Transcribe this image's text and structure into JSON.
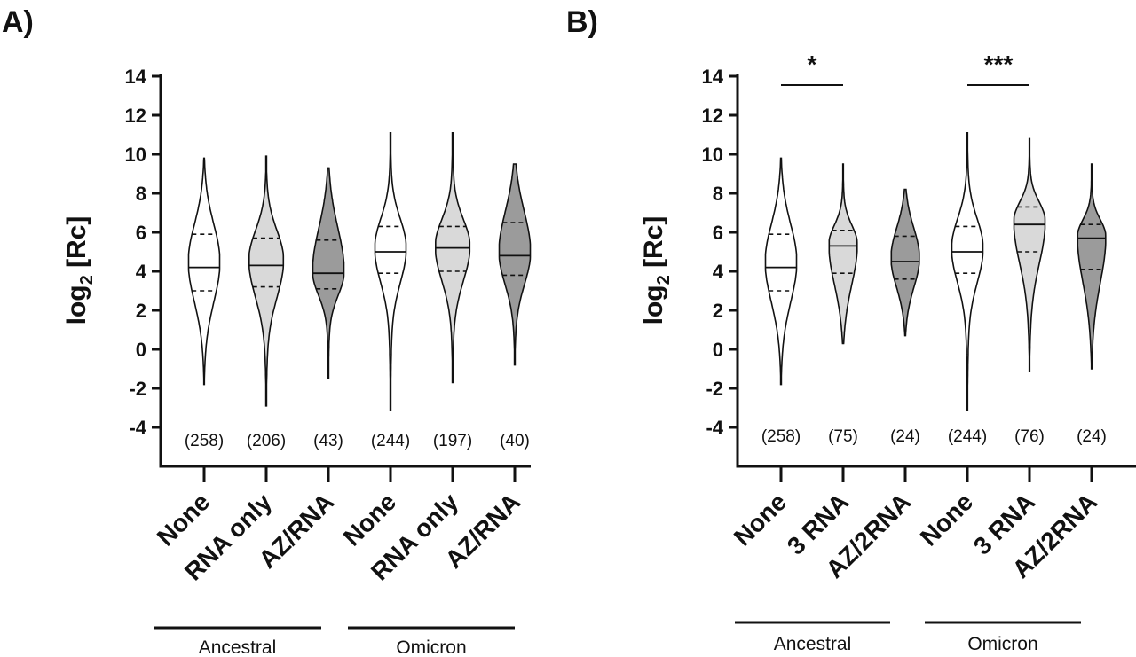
{
  "chart_data": [
    {
      "panel_label": "A)",
      "type": "violin",
      "ylabel_main": "log",
      "ylabel_sub": "2",
      "ylabel_rest": " [Rc]",
      "ylim": [
        -5,
        14
      ],
      "yticks": [
        14,
        12,
        10,
        8,
        6,
        4,
        2,
        0,
        -2,
        -4
      ],
      "ytick_labels": [
        "14",
        "12",
        "10",
        "8",
        "6",
        "4",
        "2",
        "0",
        "-2",
        "-4"
      ],
      "categories": [
        "None",
        "RNA only",
        "AZ/RNA",
        "None",
        "RNA only",
        "AZ/RNA"
      ],
      "counts": [
        "(258)",
        "(206)",
        "(43)",
        "(244)",
        "(197)",
        "(40)"
      ],
      "groups": [
        {
          "label": "Ancestral",
          "span": [
            0,
            2
          ]
        },
        {
          "label": "Omicron",
          "span": [
            3,
            5
          ]
        }
      ],
      "significance": [],
      "violins": [
        {
          "fill": "#ffffff",
          "min": -1.8,
          "max": 9.8,
          "q1": 3.0,
          "median": 4.2,
          "q3": 5.9,
          "mode": 4.5,
          "maxWidth": 0.5
        },
        {
          "fill": "#d9d9d9",
          "min": -2.9,
          "max": 9.9,
          "q1": 3.2,
          "median": 4.3,
          "q3": 5.7,
          "mode": 4.6,
          "maxWidth": 0.55
        },
        {
          "fill": "#9b9b9b",
          "min": -1.5,
          "max": 9.3,
          "q1": 3.1,
          "median": 3.9,
          "q3": 5.6,
          "mode": 4.0,
          "maxWidth": 0.5
        },
        {
          "fill": "#ffffff",
          "min": -3.1,
          "max": 11.1,
          "q1": 3.9,
          "median": 5.0,
          "q3": 6.3,
          "mode": 5.2,
          "maxWidth": 0.5
        },
        {
          "fill": "#d9d9d9",
          "min": -1.7,
          "max": 11.1,
          "q1": 4.0,
          "median": 5.2,
          "q3": 6.3,
          "mode": 5.3,
          "maxWidth": 0.55
        },
        {
          "fill": "#9b9b9b",
          "min": -0.8,
          "max": 9.5,
          "q1": 3.8,
          "median": 4.8,
          "q3": 6.5,
          "mode": 5.0,
          "maxWidth": 0.5
        }
      ]
    },
    {
      "panel_label": "B)",
      "type": "violin",
      "ylabel_main": "log",
      "ylabel_sub": "2",
      "ylabel_rest": " [Rc]",
      "ylim": [
        -5,
        14
      ],
      "yticks": [
        14,
        12,
        10,
        8,
        6,
        4,
        2,
        0,
        -2,
        -4
      ],
      "ytick_labels": [
        "14",
        "12",
        "10",
        "8",
        "6",
        "4",
        "2",
        "0",
        "-2",
        "-4"
      ],
      "categories": [
        "None",
        "3 RNA",
        "AZ/2RNA",
        "None",
        "3 RNA",
        "AZ/2RNA"
      ],
      "counts": [
        "(258)",
        "(75)",
        "(24)",
        "(244)",
        "(76)",
        "(24)"
      ],
      "groups": [
        {
          "label": "Ancestral",
          "span": [
            0,
            2
          ]
        },
        {
          "label": "Omicron",
          "span": [
            3,
            5
          ]
        }
      ],
      "significance": [
        {
          "from": 0,
          "to": 1,
          "label": "*"
        },
        {
          "from": 3,
          "to": 4,
          "label": "***"
        }
      ],
      "violins": [
        {
          "fill": "#ffffff",
          "min": -1.8,
          "max": 9.8,
          "q1": 3.0,
          "median": 4.2,
          "q3": 5.9,
          "mode": 4.5,
          "maxWidth": 0.5
        },
        {
          "fill": "#d9d9d9",
          "min": 0.3,
          "max": 9.5,
          "q1": 3.9,
          "median": 5.3,
          "q3": 6.1,
          "mode": 5.4,
          "maxWidth": 0.45
        },
        {
          "fill": "#9b9b9b",
          "min": 0.7,
          "max": 8.2,
          "q1": 3.6,
          "median": 4.5,
          "q3": 5.8,
          "mode": 4.7,
          "maxWidth": 0.45
        },
        {
          "fill": "#ffffff",
          "min": -3.1,
          "max": 11.1,
          "q1": 3.9,
          "median": 5.0,
          "q3": 6.3,
          "mode": 5.2,
          "maxWidth": 0.5
        },
        {
          "fill": "#d9d9d9",
          "min": -1.1,
          "max": 10.8,
          "q1": 5.0,
          "median": 6.4,
          "q3": 7.3,
          "mode": 6.6,
          "maxWidth": 0.5
        },
        {
          "fill": "#9b9b9b",
          "min": -1.0,
          "max": 9.5,
          "q1": 4.1,
          "median": 5.7,
          "q3": 6.4,
          "mode": 5.8,
          "maxWidth": 0.45
        }
      ]
    }
  ]
}
